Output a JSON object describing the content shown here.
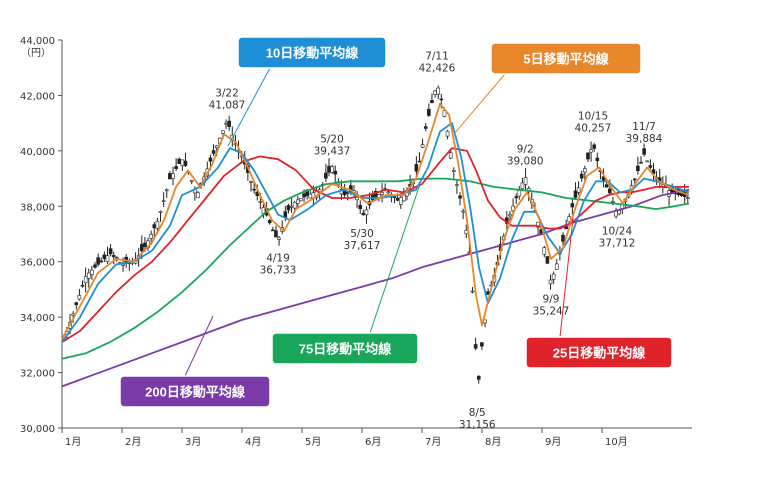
{
  "chart_data": {
    "type": "line",
    "unit_label": "（円）",
    "ylim": [
      30000,
      44000
    ],
    "y_ticks": [
      "30,000",
      "32,000",
      "34,000",
      "36,000",
      "38,000",
      "40,000",
      "42,000",
      "44,000"
    ],
    "y_tick_values": [
      30000,
      32000,
      34000,
      36000,
      38000,
      40000,
      42000,
      44000
    ],
    "x_ticks": [
      "1月",
      "2月",
      "3月",
      "4月",
      "5月",
      "6月",
      "7月",
      "8月",
      "9月",
      "10月"
    ],
    "xlim": [
      0,
      10.5
    ],
    "price": [
      [
        0,
        33000
      ],
      [
        0.2,
        34200
      ],
      [
        0.4,
        35500
      ],
      [
        0.6,
        35900
      ],
      [
        0.8,
        36300
      ],
      [
        1.0,
        35900
      ],
      [
        1.2,
        36000
      ],
      [
        1.4,
        36600
      ],
      [
        1.6,
        37500
      ],
      [
        1.8,
        39000
      ],
      [
        2.0,
        39700
      ],
      [
        2.1,
        39300
      ],
      [
        2.25,
        38400
      ],
      [
        2.45,
        39500
      ],
      [
        2.6,
        40300
      ],
      [
        2.75,
        41087
      ],
      [
        2.9,
        40200
      ],
      [
        3.0,
        39800
      ],
      [
        3.2,
        38600
      ],
      [
        3.35,
        38000
      ],
      [
        3.5,
        37200
      ],
      [
        3.6,
        36733
      ],
      [
        3.75,
        37800
      ],
      [
        3.9,
        38200
      ],
      [
        4.1,
        38400
      ],
      [
        4.3,
        38600
      ],
      [
        4.5,
        39437
      ],
      [
        4.7,
        38400
      ],
      [
        4.9,
        38600
      ],
      [
        5.0,
        37617
      ],
      [
        5.2,
        38300
      ],
      [
        5.4,
        38600
      ],
      [
        5.6,
        38200
      ],
      [
        5.8,
        38700
      ],
      [
        5.95,
        39500
      ],
      [
        6.05,
        40700
      ],
      [
        6.15,
        41600
      ],
      [
        6.25,
        42426
      ],
      [
        6.38,
        41400
      ],
      [
        6.5,
        39600
      ],
      [
        6.6,
        38600
      ],
      [
        6.7,
        37700
      ],
      [
        6.8,
        36200
      ],
      [
        6.88,
        33800
      ],
      [
        6.92,
        31156
      ],
      [
        7.0,
        33000
      ],
      [
        7.1,
        34800
      ],
      [
        7.25,
        35800
      ],
      [
        7.4,
        37300
      ],
      [
        7.55,
        38200
      ],
      [
        7.72,
        39080
      ],
      [
        7.85,
        38100
      ],
      [
        7.95,
        37300
      ],
      [
        8.05,
        36400
      ],
      [
        8.15,
        35247
      ],
      [
        8.3,
        36300
      ],
      [
        8.45,
        37600
      ],
      [
        8.6,
        38600
      ],
      [
        8.75,
        39600
      ],
      [
        8.85,
        40257
      ],
      [
        8.95,
        39400
      ],
      [
        9.05,
        38800
      ],
      [
        9.15,
        38400
      ],
      [
        9.25,
        37712
      ],
      [
        9.4,
        38300
      ],
      [
        9.55,
        39000
      ],
      [
        9.7,
        39884
      ],
      [
        9.85,
        39200
      ],
      [
        10.0,
        38800
      ],
      [
        10.15,
        38500
      ],
      [
        10.3,
        38400
      ],
      [
        10.45,
        38300
      ]
    ],
    "series": [
      {
        "name": "5日移動平均線",
        "color": "#e8862a",
        "values": [
          [
            0,
            33200
          ],
          [
            0.3,
            34400
          ],
          [
            0.6,
            35600
          ],
          [
            0.9,
            36100
          ],
          [
            1.2,
            36000
          ],
          [
            1.5,
            36700
          ],
          [
            1.7,
            37500
          ],
          [
            1.9,
            38700
          ],
          [
            2.1,
            39300
          ],
          [
            2.3,
            38700
          ],
          [
            2.5,
            39500
          ],
          [
            2.7,
            40600
          ],
          [
            2.9,
            40300
          ],
          [
            3.1,
            39400
          ],
          [
            3.3,
            38400
          ],
          [
            3.5,
            37500
          ],
          [
            3.7,
            37100
          ],
          [
            3.9,
            37900
          ],
          [
            4.2,
            38300
          ],
          [
            4.5,
            38800
          ],
          [
            4.8,
            38600
          ],
          [
            5.1,
            38100
          ],
          [
            5.4,
            38400
          ],
          [
            5.7,
            38400
          ],
          [
            5.9,
            39000
          ],
          [
            6.1,
            40300
          ],
          [
            6.3,
            41700
          ],
          [
            6.45,
            41300
          ],
          [
            6.6,
            39600
          ],
          [
            6.75,
            37500
          ],
          [
            6.9,
            34800
          ],
          [
            7.0,
            33700
          ],
          [
            7.15,
            35000
          ],
          [
            7.35,
            36700
          ],
          [
            7.55,
            37900
          ],
          [
            7.75,
            38500
          ],
          [
            7.95,
            37600
          ],
          [
            8.15,
            36100
          ],
          [
            8.35,
            36500
          ],
          [
            8.55,
            37900
          ],
          [
            8.75,
            39100
          ],
          [
            8.95,
            39400
          ],
          [
            9.15,
            38700
          ],
          [
            9.35,
            38100
          ],
          [
            9.55,
            38800
          ],
          [
            9.75,
            39400
          ],
          [
            9.95,
            38900
          ],
          [
            10.2,
            38600
          ],
          [
            10.45,
            38400
          ]
        ]
      },
      {
        "name": "10日移動平均線",
        "color": "#1e8fd6",
        "values": [
          [
            0,
            33100
          ],
          [
            0.3,
            34000
          ],
          [
            0.6,
            35200
          ],
          [
            0.9,
            35900
          ],
          [
            1.2,
            36000
          ],
          [
            1.5,
            36400
          ],
          [
            1.8,
            37300
          ],
          [
            2.0,
            38400
          ],
          [
            2.3,
            38700
          ],
          [
            2.6,
            39400
          ],
          [
            2.8,
            40100
          ],
          [
            3.0,
            39900
          ],
          [
            3.2,
            39300
          ],
          [
            3.4,
            38500
          ],
          [
            3.6,
            37700
          ],
          [
            3.8,
            37500
          ],
          [
            4.1,
            37900
          ],
          [
            4.4,
            38400
          ],
          [
            4.7,
            38600
          ],
          [
            5.0,
            38300
          ],
          [
            5.3,
            38300
          ],
          [
            5.6,
            38400
          ],
          [
            5.9,
            38600
          ],
          [
            6.1,
            39400
          ],
          [
            6.3,
            40700
          ],
          [
            6.5,
            41000
          ],
          [
            6.65,
            39800
          ],
          [
            6.8,
            38000
          ],
          [
            6.95,
            35800
          ],
          [
            7.1,
            34500
          ],
          [
            7.3,
            35400
          ],
          [
            7.5,
            36800
          ],
          [
            7.7,
            37800
          ],
          [
            7.9,
            37800
          ],
          [
            8.1,
            36900
          ],
          [
            8.3,
            36300
          ],
          [
            8.5,
            37000
          ],
          [
            8.7,
            38200
          ],
          [
            8.9,
            38900
          ],
          [
            9.1,
            38900
          ],
          [
            9.3,
            38500
          ],
          [
            9.5,
            38600
          ],
          [
            9.7,
            39000
          ],
          [
            9.9,
            38900
          ],
          [
            10.2,
            38700
          ],
          [
            10.45,
            38500
          ]
        ]
      },
      {
        "name": "25日移動平均線",
        "color": "#e0232a",
        "values": [
          [
            0,
            33100
          ],
          [
            0.3,
            33500
          ],
          [
            0.6,
            34200
          ],
          [
            0.9,
            34900
          ],
          [
            1.2,
            35500
          ],
          [
            1.5,
            36000
          ],
          [
            1.8,
            36700
          ],
          [
            2.1,
            37500
          ],
          [
            2.4,
            38300
          ],
          [
            2.7,
            39100
          ],
          [
            3.0,
            39600
          ],
          [
            3.3,
            39800
          ],
          [
            3.6,
            39700
          ],
          [
            3.9,
            39300
          ],
          [
            4.2,
            38600
          ],
          [
            4.5,
            38300
          ],
          [
            4.8,
            38300
          ],
          [
            5.1,
            38400
          ],
          [
            5.4,
            38600
          ],
          [
            5.7,
            38500
          ],
          [
            6.0,
            38800
          ],
          [
            6.3,
            39600
          ],
          [
            6.5,
            40100
          ],
          [
            6.75,
            40000
          ],
          [
            6.9,
            39300
          ],
          [
            7.1,
            38200
          ],
          [
            7.3,
            37600
          ],
          [
            7.5,
            37300
          ],
          [
            7.7,
            37300
          ],
          [
            7.9,
            37300
          ],
          [
            8.1,
            37200
          ],
          [
            8.3,
            37200
          ],
          [
            8.5,
            37400
          ],
          [
            8.7,
            37800
          ],
          [
            8.9,
            38200
          ],
          [
            9.1,
            38400
          ],
          [
            9.3,
            38500
          ],
          [
            9.5,
            38500
          ],
          [
            9.7,
            38600
          ],
          [
            9.9,
            38700
          ],
          [
            10.2,
            38700
          ],
          [
            10.45,
            38700
          ]
        ]
      },
      {
        "name": "75日移動平均線",
        "color": "#1aa65a",
        "values": [
          [
            0,
            32500
          ],
          [
            0.4,
            32700
          ],
          [
            0.8,
            33100
          ],
          [
            1.2,
            33600
          ],
          [
            1.6,
            34200
          ],
          [
            2.0,
            34900
          ],
          [
            2.4,
            35700
          ],
          [
            2.8,
            36600
          ],
          [
            3.1,
            37200
          ],
          [
            3.4,
            37800
          ],
          [
            3.7,
            38200
          ],
          [
            4.0,
            38500
          ],
          [
            4.4,
            38800
          ],
          [
            4.8,
            38900
          ],
          [
            5.2,
            38900
          ],
          [
            5.6,
            38900
          ],
          [
            6.0,
            39000
          ],
          [
            6.4,
            39000
          ],
          [
            6.8,
            38900
          ],
          [
            7.2,
            38700
          ],
          [
            7.6,
            38600
          ],
          [
            8.0,
            38500
          ],
          [
            8.4,
            38300
          ],
          [
            8.8,
            38200
          ],
          [
            9.2,
            38100
          ],
          [
            9.6,
            38000
          ],
          [
            9.9,
            37900
          ],
          [
            10.2,
            38000
          ],
          [
            10.45,
            38100
          ]
        ]
      },
      {
        "name": "200日移動平均線",
        "color": "#7b3aa8",
        "values": [
          [
            0,
            31500
          ],
          [
            0.5,
            31900
          ],
          [
            1.0,
            32300
          ],
          [
            1.5,
            32700
          ],
          [
            2.0,
            33100
          ],
          [
            2.5,
            33500
          ],
          [
            3.0,
            33900
          ],
          [
            3.5,
            34200
          ],
          [
            4.0,
            34500
          ],
          [
            4.5,
            34800
          ],
          [
            5.0,
            35100
          ],
          [
            5.5,
            35400
          ],
          [
            6.0,
            35800
          ],
          [
            6.5,
            36100
          ],
          [
            7.0,
            36400
          ],
          [
            7.5,
            36700
          ],
          [
            8.0,
            37000
          ],
          [
            8.5,
            37400
          ],
          [
            9.0,
            37700
          ],
          [
            9.5,
            38000
          ],
          [
            10.0,
            38400
          ],
          [
            10.45,
            38600
          ]
        ]
      }
    ],
    "annotations": [
      {
        "date": "3/22",
        "value": "41,087",
        "x": 2.75,
        "y": 41087,
        "pos": "above"
      },
      {
        "date": "4/19",
        "value": "36,733",
        "x": 3.6,
        "y": 36733,
        "pos": "below"
      },
      {
        "date": "5/20",
        "value": "39,437",
        "x": 4.5,
        "y": 39437,
        "pos": "above"
      },
      {
        "date": "5/30",
        "value": "37,617",
        "x": 5.0,
        "y": 37617,
        "pos": "below"
      },
      {
        "date": "7/11",
        "value": "42,426",
        "x": 6.25,
        "y": 42426,
        "pos": "above"
      },
      {
        "date": "8/5",
        "value": "31,156",
        "x": 6.92,
        "y": 31156,
        "pos": "below"
      },
      {
        "date": "9/2",
        "value": "39,080",
        "x": 7.72,
        "y": 39080,
        "pos": "above"
      },
      {
        "date": "9/9",
        "value": "35,247",
        "x": 8.15,
        "y": 35247,
        "pos": "below"
      },
      {
        "date": "10/15",
        "value": "40,257",
        "x": 8.85,
        "y": 40257,
        "pos": "above"
      },
      {
        "date": "10/24",
        "value": "37,712",
        "x": 9.25,
        "y": 37712,
        "pos": "below"
      },
      {
        "date": "11/7",
        "value": "39,884",
        "x": 9.7,
        "y": 39884,
        "pos": "above"
      }
    ],
    "legend_labels": [
      {
        "text": "10日移動平均線",
        "series": 1
      },
      {
        "text": "5日移動平均線",
        "series": 0
      },
      {
        "text": "75日移動平均線",
        "series": 3
      },
      {
        "text": "25日移動平均線",
        "series": 2
      },
      {
        "text": "200日移動平均線",
        "series": 4
      }
    ]
  }
}
